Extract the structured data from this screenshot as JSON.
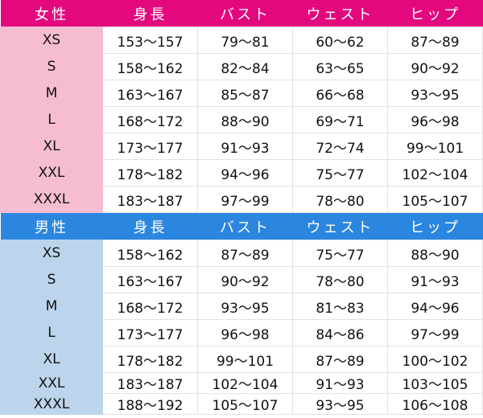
{
  "colors": {
    "female_header": "#e4087e",
    "female_size_col": "#f6bdd2",
    "male_header": "#2b86e0",
    "male_size_col": "#bcd5ec"
  },
  "female": {
    "headers": [
      "女性",
      "身長",
      "バスト",
      "ウェスト",
      "ヒップ"
    ],
    "rows": [
      [
        "XS",
        "153～157",
        "79～81",
        "60～62",
        "87～89"
      ],
      [
        "S",
        "158～162",
        "82～84",
        "63～65",
        "90～92"
      ],
      [
        "M",
        "163～167",
        "85～87",
        "66～68",
        "93～95"
      ],
      [
        "L",
        "168～172",
        "88～90",
        "69～71",
        "96～98"
      ],
      [
        "XL",
        "173～177",
        "91～93",
        "72～74",
        "99～101"
      ],
      [
        "XXL",
        "178～182",
        "94～96",
        "75～77",
        "102～104"
      ],
      [
        "XXXL",
        "183～187",
        "97～99",
        "78～80",
        "105～107"
      ]
    ]
  },
  "male": {
    "headers": [
      "男性",
      "身長",
      "バスト",
      "ウェスト",
      "ヒップ"
    ],
    "rows": [
      [
        "XS",
        "158～162",
        "87～89",
        "75～77",
        "88～90"
      ],
      [
        "S",
        "163～167",
        "90～92",
        "78～80",
        "91～93"
      ],
      [
        "M",
        "168～172",
        "93～95",
        "81～83",
        "94～96"
      ],
      [
        "L",
        "173～177",
        "96～98",
        "84～86",
        "97～99"
      ],
      [
        "XL",
        "178～182",
        "99～101",
        "87～89",
        "100～102"
      ],
      [
        "XXL",
        "183～187",
        "102～104",
        "91～93",
        "103～105"
      ],
      [
        "XXXL",
        "188～192",
        "105～107",
        "93～95",
        "106～108"
      ]
    ]
  }
}
